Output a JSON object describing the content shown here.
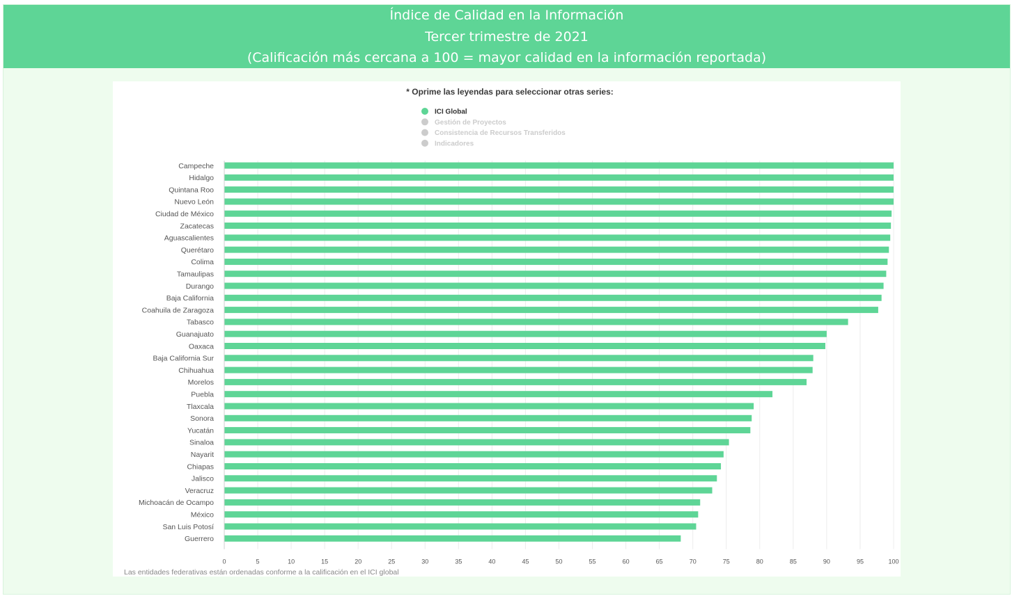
{
  "header": {
    "title_line1": "Índice de Calidad en la Información",
    "title_line2": "Tercer trimestre de 2021",
    "title_line3": "(Calificación más cercana a 100 = mayor calidad en la información reportada)"
  },
  "chart_data": {
    "type": "bar",
    "orientation": "horizontal",
    "legend_hint": "* Oprime las leyendas para seleccionar otras series:",
    "legend_placement": "top-center",
    "legend": [
      {
        "label": "ICI Global",
        "active": true,
        "color": "#5ed596"
      },
      {
        "label": "Gestión de Proyectos",
        "active": false,
        "color": "#cccccc"
      },
      {
        "label": "Consistencia de Recursos Transferidos",
        "active": false,
        "color": "#cccccc"
      },
      {
        "label": "Indicadores",
        "active": false,
        "color": "#cccccc"
      }
    ],
    "categories": [
      "Campeche",
      "Hidalgo",
      "Quintana Roo",
      "Nuevo León",
      "Ciudad de México",
      "Zacatecas",
      "Aguascalientes",
      "Querétaro",
      "Colima",
      "Tamaulipas",
      "Durango",
      "Baja California",
      "Coahuila de Zaragoza",
      "Tabasco",
      "Guanajuato",
      "Oaxaca",
      "Baja California Sur",
      "Chihuahua",
      "Morelos",
      "Puebla",
      "Tlaxcala",
      "Sonora",
      "Yucatán",
      "Sinaloa",
      "Nayarit",
      "Chiapas",
      "Jalisco",
      "Veracruz",
      "Michoacán de Ocampo",
      "México",
      "San Luis Potosí",
      "Guerrero"
    ],
    "series": [
      {
        "name": "ICI Global",
        "color": "#5ed596",
        "values": [
          100,
          100,
          100,
          100,
          99.7,
          99.6,
          99.5,
          99.3,
          99.1,
          98.9,
          98.5,
          98.2,
          97.7,
          93.2,
          90.0,
          89.8,
          88.0,
          87.9,
          87.0,
          81.9,
          79.1,
          78.8,
          78.6,
          75.4,
          74.6,
          74.2,
          73.6,
          72.9,
          71.1,
          70.8,
          70.5,
          68.2
        ]
      }
    ],
    "xlim": [
      0,
      100
    ],
    "xticks": [
      0,
      5,
      10,
      15,
      20,
      25,
      30,
      35,
      40,
      45,
      50,
      55,
      60,
      65,
      70,
      75,
      80,
      85,
      90,
      95,
      100
    ],
    "grid": true,
    "note": "Las entidades federativas están ordenadas conforme a la calificación en el ICI global"
  }
}
